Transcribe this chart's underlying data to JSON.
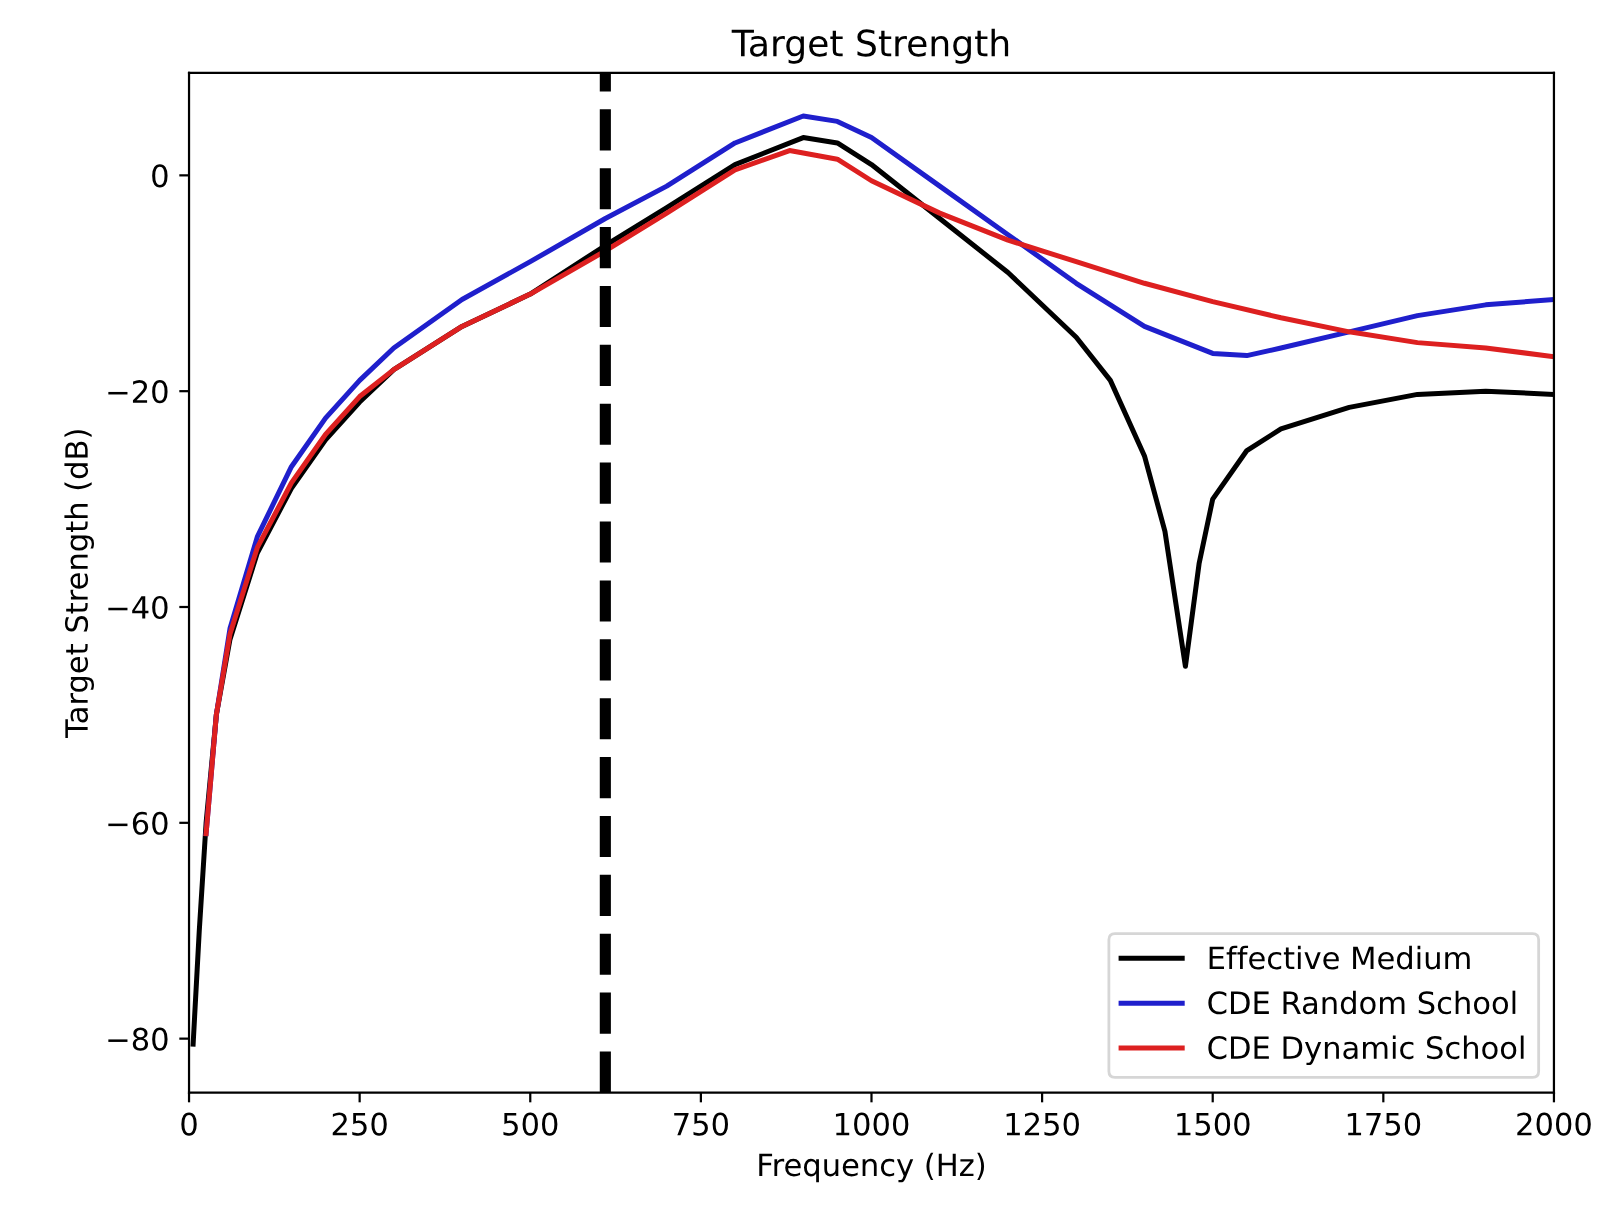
{
  "chart_data": {
    "type": "line",
    "title": "Target Strength",
    "xlabel": "Frequency (Hz)",
    "ylabel": "Target Strength (dB)",
    "xlim": [
      0,
      2000
    ],
    "ylim": [
      -85,
      9.5
    ],
    "xticks": [
      0,
      250,
      500,
      750,
      1000,
      1250,
      1500,
      1750,
      2000
    ],
    "yticks": [
      {
        "value": -80,
        "label": "−80"
      },
      {
        "value": -60,
        "label": "−60"
      },
      {
        "value": -40,
        "label": "−40"
      },
      {
        "value": -20,
        "label": "−20"
      },
      0
    ],
    "grid": false,
    "legend": "bottom right",
    "marker": "none",
    "line_style": "solid",
    "ref_lines": [
      {
        "axis": "x",
        "value": 610,
        "label": null,
        "color": "#000000",
        "line_style": "dashed"
      }
    ],
    "series": [
      {
        "name": "Effective Medium",
        "color": "#000000",
        "x": [
          6,
          15,
          25,
          40,
          60,
          100,
          150,
          200,
          250,
          300,
          400,
          500,
          610,
          700,
          800,
          900,
          950,
          1000,
          1100,
          1200,
          1300,
          1350,
          1400,
          1430,
          1460,
          1480,
          1500,
          1550,
          1600,
          1700,
          1800,
          1900,
          2000
        ],
        "values": [
          -80.5,
          -70,
          -60,
          -50,
          -43,
          -35,
          -29,
          -24.5,
          -21,
          -18,
          -14,
          -11,
          -6.5,
          -3,
          1,
          3.5,
          3,
          1,
          -4,
          -9,
          -15,
          -19,
          -26,
          -33,
          -45.5,
          -36,
          -30,
          -25.5,
          -23.5,
          -21.5,
          -20.3,
          -20,
          -20.3
        ]
      },
      {
        "name": "CDE Random School",
        "color": "#1f1fcc",
        "x": [
          25,
          40,
          60,
          100,
          150,
          200,
          250,
          300,
          400,
          500,
          610,
          700,
          800,
          900,
          950,
          1000,
          1100,
          1200,
          1300,
          1400,
          1500,
          1550,
          1600,
          1700,
          1800,
          1900,
          2000
        ],
        "values": [
          -61,
          -50,
          -42,
          -33.5,
          -27,
          -22.5,
          -19,
          -16,
          -11.5,
          -8,
          -4,
          -1,
          3,
          5.5,
          5,
          3.5,
          -1,
          -5.5,
          -10,
          -14,
          -16.5,
          -16.7,
          -16,
          -14.5,
          -13,
          -12,
          -11.5
        ]
      },
      {
        "name": "CDE Dynamic School",
        "color": "#dd2020",
        "x": [
          25,
          40,
          60,
          100,
          150,
          200,
          250,
          300,
          400,
          500,
          610,
          700,
          800,
          880,
          950,
          1000,
          1100,
          1200,
          1300,
          1400,
          1500,
          1600,
          1700,
          1800,
          1900,
          2000
        ],
        "values": [
          -61,
          -50,
          -42.5,
          -34.5,
          -28.5,
          -24,
          -20.5,
          -18,
          -14,
          -11,
          -7,
          -3.5,
          0.5,
          2.3,
          1.5,
          -0.5,
          -3.5,
          -6,
          -8,
          -10,
          -11.7,
          -13.2,
          -14.5,
          -15.5,
          -16,
          -16.8
        ]
      }
    ]
  }
}
